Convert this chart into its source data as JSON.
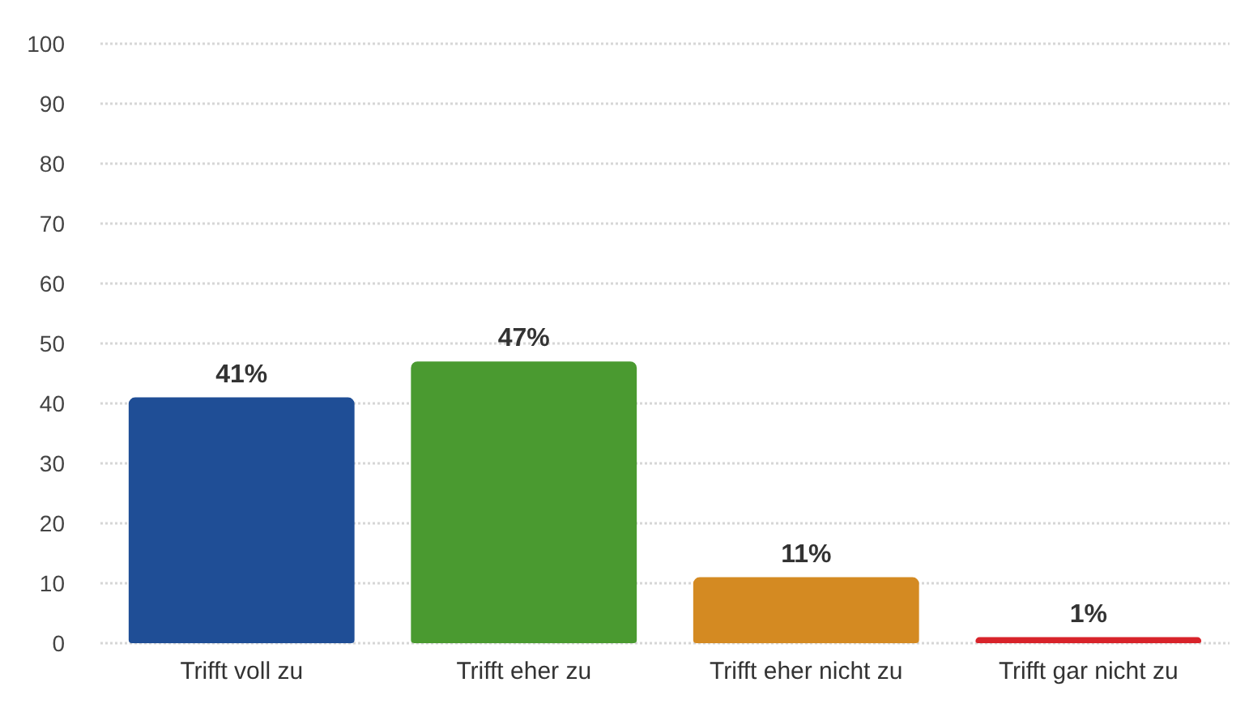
{
  "chart_data": {
    "type": "bar",
    "categories": [
      "Trifft voll zu",
      "Trifft eher zu",
      "Trifft eher nicht zu",
      "Trifft gar nicht zu"
    ],
    "values": [
      41,
      47,
      11,
      1
    ],
    "value_labels": [
      "41%",
      "47%",
      "11%",
      "1%"
    ],
    "colors": [
      "#1f4e96",
      "#4a9a30",
      "#d48a22",
      "#d8232a"
    ],
    "ylim": [
      0,
      100
    ],
    "yticks": [
      0,
      10,
      20,
      30,
      40,
      50,
      60,
      70,
      80,
      90,
      100
    ],
    "grid": "y"
  }
}
